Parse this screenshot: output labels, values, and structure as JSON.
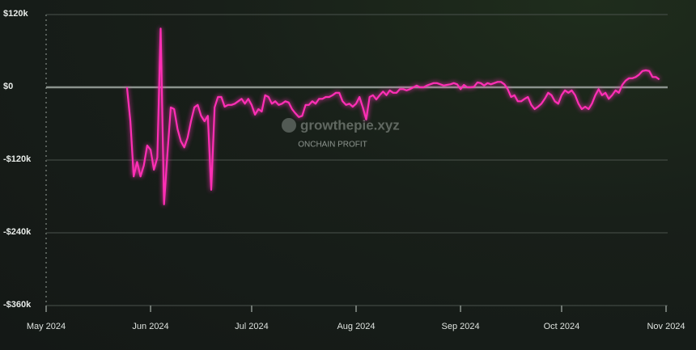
{
  "chart_data": {
    "type": "line",
    "watermark": "growthepie.xyz",
    "subtitle": "ONCHAIN PROFIT",
    "xlim": [
      "2024-05-01",
      "2024-11-01"
    ],
    "xticks": [
      {
        "value": "2024-05-01",
        "label": "May 2024"
      },
      {
        "value": "2024-06-01",
        "label": "Jun 2024"
      },
      {
        "value": "2024-07-01",
        "label": "Jul 2024"
      },
      {
        "value": "2024-08-01",
        "label": "Aug 2024"
      },
      {
        "value": "2024-09-01",
        "label": "Sep 2024"
      },
      {
        "value": "2024-10-01",
        "label": "Oct 2024"
      },
      {
        "value": "2024-11-01",
        "label": "Nov 2024"
      }
    ],
    "ylim": [
      -360000,
      120000
    ],
    "yticks": [
      {
        "value": 120000,
        "label": "$120k"
      },
      {
        "value": 0,
        "label": "$0"
      },
      {
        "value": -120000,
        "label": "-$120k"
      },
      {
        "value": -240000,
        "label": "-$240k"
      },
      {
        "value": -360000,
        "label": "-$360k"
      }
    ],
    "grid": true,
    "x": [
      "2024-05-25",
      "2024-05-26",
      "2024-05-27",
      "2024-05-28",
      "2024-05-29",
      "2024-05-30",
      "2024-05-31",
      "2024-06-01",
      "2024-06-02",
      "2024-06-03",
      "2024-06-04",
      "2024-06-05",
      "2024-06-06",
      "2024-06-07",
      "2024-06-08",
      "2024-06-09",
      "2024-06-10",
      "2024-06-11",
      "2024-06-12",
      "2024-06-13",
      "2024-06-14",
      "2024-06-15",
      "2024-06-16",
      "2024-06-17",
      "2024-06-18",
      "2024-06-19",
      "2024-06-20",
      "2024-06-21",
      "2024-06-22",
      "2024-06-23",
      "2024-06-24",
      "2024-06-25",
      "2024-06-26",
      "2024-06-27",
      "2024-06-28",
      "2024-06-29",
      "2024-06-30",
      "2024-07-01",
      "2024-07-02",
      "2024-07-03",
      "2024-07-04",
      "2024-07-05",
      "2024-07-06",
      "2024-07-07",
      "2024-07-08",
      "2024-07-09",
      "2024-07-10",
      "2024-07-11",
      "2024-07-12",
      "2024-07-13",
      "2024-07-14",
      "2024-07-15",
      "2024-07-16",
      "2024-07-17",
      "2024-07-18",
      "2024-07-19",
      "2024-07-20",
      "2024-07-21",
      "2024-07-22",
      "2024-07-23",
      "2024-07-24",
      "2024-07-25",
      "2024-07-26",
      "2024-07-27",
      "2024-07-28",
      "2024-07-29",
      "2024-07-30",
      "2024-07-31",
      "2024-08-01",
      "2024-08-02",
      "2024-08-03",
      "2024-08-04",
      "2024-08-05",
      "2024-08-06",
      "2024-08-07",
      "2024-08-08",
      "2024-08-09",
      "2024-08-10",
      "2024-08-11",
      "2024-08-12",
      "2024-08-13",
      "2024-08-14",
      "2024-08-15",
      "2024-08-16",
      "2024-08-17",
      "2024-08-18",
      "2024-08-19",
      "2024-08-20",
      "2024-08-21",
      "2024-08-22",
      "2024-08-23",
      "2024-08-24",
      "2024-08-25",
      "2024-08-26",
      "2024-08-27",
      "2024-08-28",
      "2024-08-29",
      "2024-08-30",
      "2024-08-31",
      "2024-09-01",
      "2024-09-02",
      "2024-09-03",
      "2024-09-04",
      "2024-09-05",
      "2024-09-06",
      "2024-09-07",
      "2024-09-08",
      "2024-09-09",
      "2024-09-10",
      "2024-09-11",
      "2024-09-12",
      "2024-09-13",
      "2024-09-14",
      "2024-09-15",
      "2024-09-16",
      "2024-09-17",
      "2024-09-18",
      "2024-09-19",
      "2024-09-20",
      "2024-09-21",
      "2024-09-22",
      "2024-09-23",
      "2024-09-24",
      "2024-09-25",
      "2024-09-26",
      "2024-09-27",
      "2024-09-28",
      "2024-09-29",
      "2024-09-30",
      "2024-10-01",
      "2024-10-02",
      "2024-10-03",
      "2024-10-04",
      "2024-10-05",
      "2024-10-06",
      "2024-10-07",
      "2024-10-08",
      "2024-10-09",
      "2024-10-10",
      "2024-10-11",
      "2024-10-12",
      "2024-10-13",
      "2024-10-14",
      "2024-10-15",
      "2024-10-16",
      "2024-10-17",
      "2024-10-18",
      "2024-10-19",
      "2024-10-20",
      "2024-10-21",
      "2024-10-22",
      "2024-10-23",
      "2024-10-24",
      "2024-10-25",
      "2024-10-26",
      "2024-10-27",
      "2024-10-28",
      "2024-10-29",
      "2024-10-30"
    ],
    "series": [
      {
        "color": "#ff2fb5",
        "values": [
          0,
          -56000,
          -147000,
          -123000,
          -147000,
          -129000,
          -96000,
          -103000,
          -136000,
          -116000,
          97000,
          -193000,
          -109000,
          -33000,
          -36000,
          -69000,
          -89000,
          -99000,
          -83000,
          -56000,
          -33000,
          -29000,
          -47000,
          -56000,
          -47000,
          -169000,
          -33000,
          -16000,
          -16000,
          -32000,
          -29000,
          -29000,
          -27000,
          -23000,
          -19000,
          -27000,
          -19000,
          -29000,
          -45000,
          -36000,
          -40000,
          -13000,
          -16000,
          -27000,
          -23000,
          -29000,
          -27000,
          -23000,
          -25000,
          -36000,
          -43000,
          -49000,
          -47000,
          -29000,
          -29000,
          -23000,
          -27000,
          -19000,
          -19000,
          -16000,
          -16000,
          -13000,
          -9000,
          -9000,
          -23000,
          -29000,
          -27000,
          -32000,
          -27000,
          -16000,
          -33000,
          -53000,
          -16000,
          -13000,
          -20000,
          -13000,
          -7000,
          -13000,
          -5000,
          -9000,
          -9000,
          -3000,
          -3000,
          -5000,
          -3000,
          0,
          3000,
          0,
          0,
          3000,
          5000,
          7000,
          7000,
          5000,
          3000,
          4000,
          5000,
          7000,
          5000,
          -3000,
          4000,
          0,
          0,
          1000,
          8000,
          7000,
          3000,
          7000,
          5000,
          7000,
          9000,
          9000,
          5000,
          -3000,
          -16000,
          -13000,
          -23000,
          -23000,
          -19000,
          -16000,
          -29000,
          -36000,
          -32000,
          -27000,
          -19000,
          -9000,
          -13000,
          -23000,
          -27000,
          -13000,
          -5000,
          -9000,
          -5000,
          -13000,
          -27000,
          -36000,
          -32000,
          -36000,
          -27000,
          -13000,
          -3000,
          -13000,
          -9000,
          -19000,
          -13000,
          -5000,
          -9000,
          4000,
          11000,
          15000,
          15000,
          17000,
          21000,
          27000,
          28000,
          27000,
          17000,
          17000,
          13000
        ]
      }
    ]
  }
}
